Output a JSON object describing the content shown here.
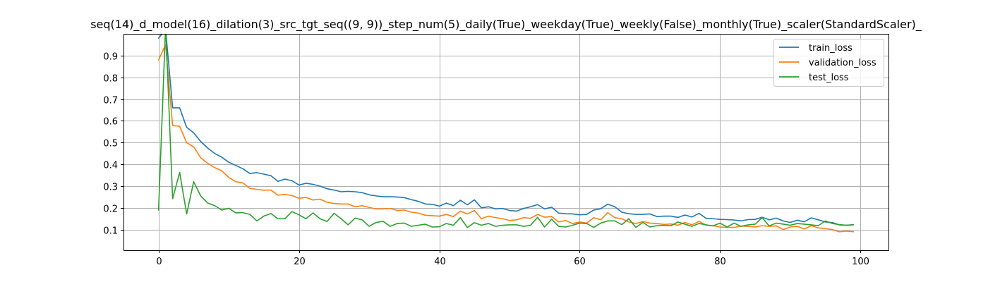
{
  "chart_data": {
    "type": "line",
    "title": "seq(14)_d_model(16)_dilation(3)_src_tgt_seq((9, 9))_step_num(5)_daily(True)_weekday(True)_weekly(False)_monthly(True)_scaler(StandardScaler)_",
    "xlabel": "",
    "ylabel": "",
    "xlim": [
      -5,
      104
    ],
    "ylim": [
      0.005,
      1.0
    ],
    "xticks": [
      0,
      20,
      40,
      60,
      80,
      100
    ],
    "yticks": [
      0.1,
      0.2,
      0.3,
      0.4,
      0.5,
      0.6,
      0.7,
      0.8,
      0.9
    ],
    "grid": true,
    "legend_position": "top-right",
    "x": [
      0,
      1,
      2,
      3,
      4,
      5,
      6,
      7,
      8,
      9,
      10,
      11,
      12,
      13,
      14,
      15,
      16,
      17,
      18,
      19,
      20,
      21,
      22,
      23,
      24,
      25,
      26,
      27,
      28,
      29,
      30,
      31,
      32,
      33,
      34,
      35,
      36,
      37,
      38,
      39,
      40,
      41,
      42,
      43,
      44,
      45,
      46,
      47,
      48,
      49,
      50,
      51,
      52,
      53,
      54,
      55,
      56,
      57,
      58,
      59,
      60,
      61,
      62,
      63,
      64,
      65,
      66,
      67,
      68,
      69,
      70,
      71,
      72,
      73,
      74,
      75,
      76,
      77,
      78,
      79,
      80,
      81,
      82,
      83,
      84,
      85,
      86,
      87,
      88,
      89,
      90,
      91,
      92,
      93,
      94,
      95,
      96,
      97,
      98,
      99
    ],
    "series": [
      {
        "name": "train_loss",
        "color": "#1f77b4",
        "values": [
          0.98,
          1.02,
          0.66,
          0.66,
          0.57,
          0.545,
          0.505,
          0.475,
          0.45,
          0.433,
          0.41,
          0.395,
          0.38,
          0.358,
          0.362,
          0.355,
          0.348,
          0.322,
          0.332,
          0.325,
          0.305,
          0.313,
          0.308,
          0.3,
          0.288,
          0.282,
          0.274,
          0.276,
          0.274,
          0.27,
          0.26,
          0.255,
          0.251,
          0.251,
          0.25,
          0.247,
          0.238,
          0.23,
          0.218,
          0.216,
          0.208,
          0.222,
          0.21,
          0.235,
          0.214,
          0.237,
          0.2,
          0.205,
          0.195,
          0.197,
          0.188,
          0.185,
          0.197,
          0.205,
          0.215,
          0.195,
          0.203,
          0.176,
          0.173,
          0.172,
          0.168,
          0.17,
          0.19,
          0.196,
          0.217,
          0.205,
          0.18,
          0.173,
          0.17,
          0.17,
          0.172,
          0.16,
          0.162,
          0.162,
          0.156,
          0.167,
          0.158,
          0.175,
          0.152,
          0.15,
          0.147,
          0.146,
          0.144,
          0.14,
          0.146,
          0.147,
          0.157,
          0.145,
          0.153,
          0.14,
          0.133,
          0.143,
          0.136,
          0.154,
          0.145,
          0.135,
          0.132,
          0.122,
          0.12,
          0.123
        ]
      },
      {
        "name": "validation_loss",
        "color": "#ff7f0e",
        "values": [
          0.88,
          0.95,
          0.578,
          0.575,
          0.5,
          0.48,
          0.43,
          0.405,
          0.385,
          0.37,
          0.34,
          0.32,
          0.315,
          0.29,
          0.285,
          0.281,
          0.282,
          0.258,
          0.262,
          0.257,
          0.244,
          0.248,
          0.236,
          0.24,
          0.226,
          0.22,
          0.218,
          0.218,
          0.205,
          0.21,
          0.202,
          0.195,
          0.195,
          0.197,
          0.188,
          0.19,
          0.18,
          0.176,
          0.166,
          0.164,
          0.162,
          0.17,
          0.16,
          0.185,
          0.172,
          0.188,
          0.15,
          0.162,
          0.155,
          0.15,
          0.142,
          0.145,
          0.155,
          0.152,
          0.17,
          0.157,
          0.16,
          0.135,
          0.142,
          0.128,
          0.135,
          0.13,
          0.155,
          0.145,
          0.178,
          0.155,
          0.15,
          0.135,
          0.128,
          0.137,
          0.13,
          0.128,
          0.124,
          0.126,
          0.12,
          0.133,
          0.122,
          0.138,
          0.12,
          0.118,
          0.112,
          0.11,
          0.11,
          0.116,
          0.115,
          0.112,
          0.118,
          0.115,
          0.117,
          0.1,
          0.112,
          0.115,
          0.103,
          0.118,
          0.108,
          0.105,
          0.1,
          0.09,
          0.093,
          0.09
        ]
      },
      {
        "name": "test_loss",
        "color": "#2ca02c",
        "values": [
          0.19,
          1.04,
          0.242,
          0.363,
          0.172,
          0.32,
          0.255,
          0.222,
          0.21,
          0.19,
          0.198,
          0.177,
          0.178,
          0.17,
          0.14,
          0.162,
          0.174,
          0.15,
          0.15,
          0.183,
          0.168,
          0.15,
          0.177,
          0.15,
          0.137,
          0.175,
          0.15,
          0.122,
          0.153,
          0.145,
          0.115,
          0.133,
          0.138,
          0.115,
          0.128,
          0.13,
          0.115,
          0.12,
          0.125,
          0.112,
          0.113,
          0.128,
          0.12,
          0.155,
          0.11,
          0.132,
          0.12,
          0.128,
          0.115,
          0.12,
          0.122,
          0.122,
          0.115,
          0.12,
          0.157,
          0.112,
          0.148,
          0.115,
          0.112,
          0.12,
          0.13,
          0.128,
          0.11,
          0.13,
          0.14,
          0.14,
          0.123,
          0.15,
          0.11,
          0.133,
          0.112,
          0.118,
          0.12,
          0.118,
          0.135,
          0.125,
          0.115,
          0.128,
          0.122,
          0.117,
          0.13,
          0.112,
          0.13,
          0.115,
          0.122,
          0.125,
          0.155,
          0.117,
          0.13,
          0.125,
          0.12,
          0.128,
          0.125,
          0.122,
          0.118,
          0.14,
          0.128,
          0.123,
          0.12,
          0.122
        ]
      }
    ]
  }
}
